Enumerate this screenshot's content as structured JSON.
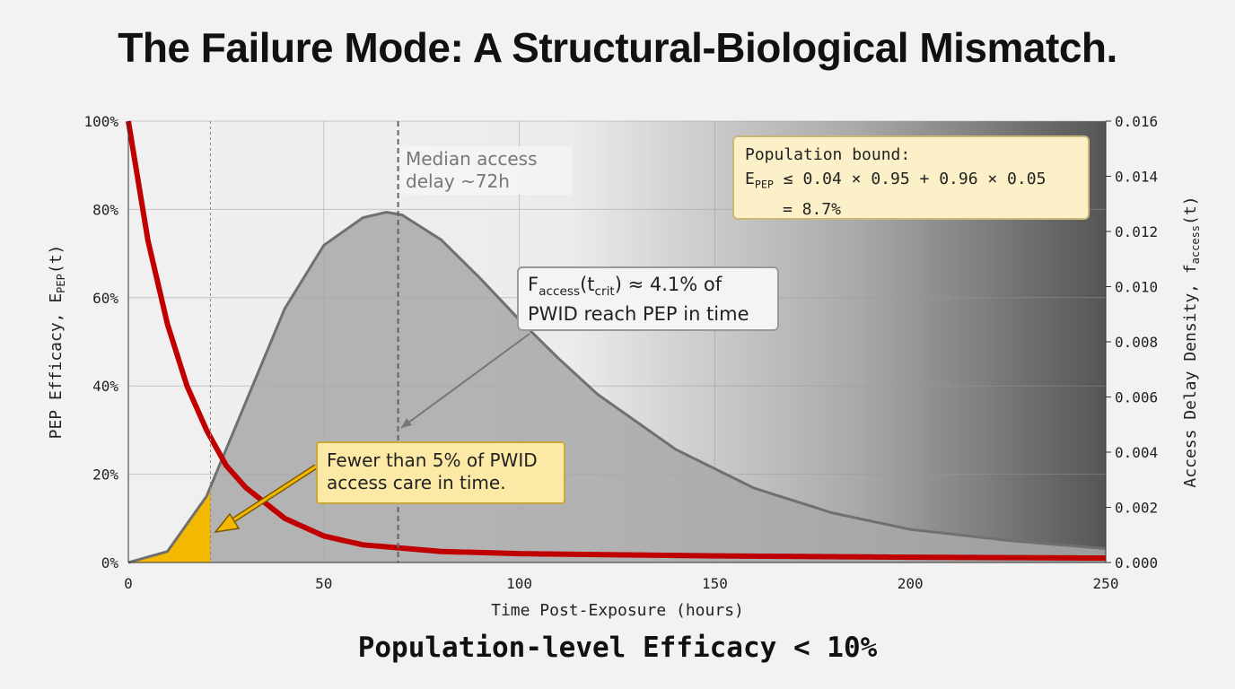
{
  "title": "The Failure Mode: A Structural-Biological Mismatch.",
  "footer": "Population-level Efficacy < 10%",
  "colors": {
    "efficacy": "#c00000",
    "density_fill": "#a8a8a8",
    "density_line": "#707070",
    "in_time_fill": "#f5b800"
  },
  "chart_data": {
    "type": "line",
    "xlabel": "Time Post-Exposure (hours)",
    "ylabel": "PEP Efficacy, E",
    "ylabel_sub": "PEP",
    "ylabel_tail": "(t)",
    "y2label": "Access Delay Density, f",
    "y2label_sub": "access",
    "y2label_tail": "(t)",
    "xlim": [
      0,
      250
    ],
    "ylim": [
      0,
      100
    ],
    "y2lim": [
      0,
      0.016
    ],
    "x_ticks": [
      "0",
      "50",
      "100",
      "150",
      "200",
      "250"
    ],
    "y_ticks": [
      "0%",
      "20%",
      "40%",
      "60%",
      "80%",
      "100%"
    ],
    "y2_ticks": [
      "0.000",
      "0.002",
      "0.004",
      "0.006",
      "0.008",
      "0.010",
      "0.012",
      "0.014",
      "0.016"
    ],
    "grid": true,
    "series": [
      {
        "axis": "left",
        "x": [
          0,
          5,
          10,
          15,
          20,
          25,
          30,
          40,
          50,
          60,
          80,
          100,
          150,
          200,
          250
        ],
        "values": [
          100,
          73,
          54,
          40,
          30,
          22,
          17,
          10,
          6,
          4,
          2.5,
          2,
          1.5,
          1.2,
          1
        ]
      },
      {
        "axis": "right",
        "x": [
          0,
          10,
          20,
          30,
          40,
          50,
          60,
          66,
          70,
          80,
          90,
          100,
          110,
          120,
          140,
          160,
          180,
          200,
          225,
          250
        ],
        "values": [
          0,
          0.0004,
          0.0024,
          0.0058,
          0.0092,
          0.0115,
          0.0125,
          0.0127,
          0.0126,
          0.0117,
          0.0103,
          0.0088,
          0.0074,
          0.0061,
          0.0041,
          0.0027,
          0.0018,
          0.0012,
          0.0008,
          0.0005
        ]
      }
    ],
    "critical_time": 21,
    "median_line": 69,
    "annotations": {
      "median": "Median access delay ~72h",
      "bound_title": "Population bound:",
      "bound_lhs": "E",
      "bound_lhs_sub": "PEP",
      "bound_expr": " ≤ 0.04 × 0.95 + 0.96 × 0.05",
      "bound_result": "= 8.7%",
      "faccess_f": "F",
      "faccess_sub": "access",
      "faccess_t": "(t",
      "faccess_tsub": "crit",
      "faccess_rest": ") ≈ 4.1% of",
      "faccess_line2": "PWID reach PEP in time",
      "fewer": "Fewer than 5% of PWID access care in time."
    }
  }
}
